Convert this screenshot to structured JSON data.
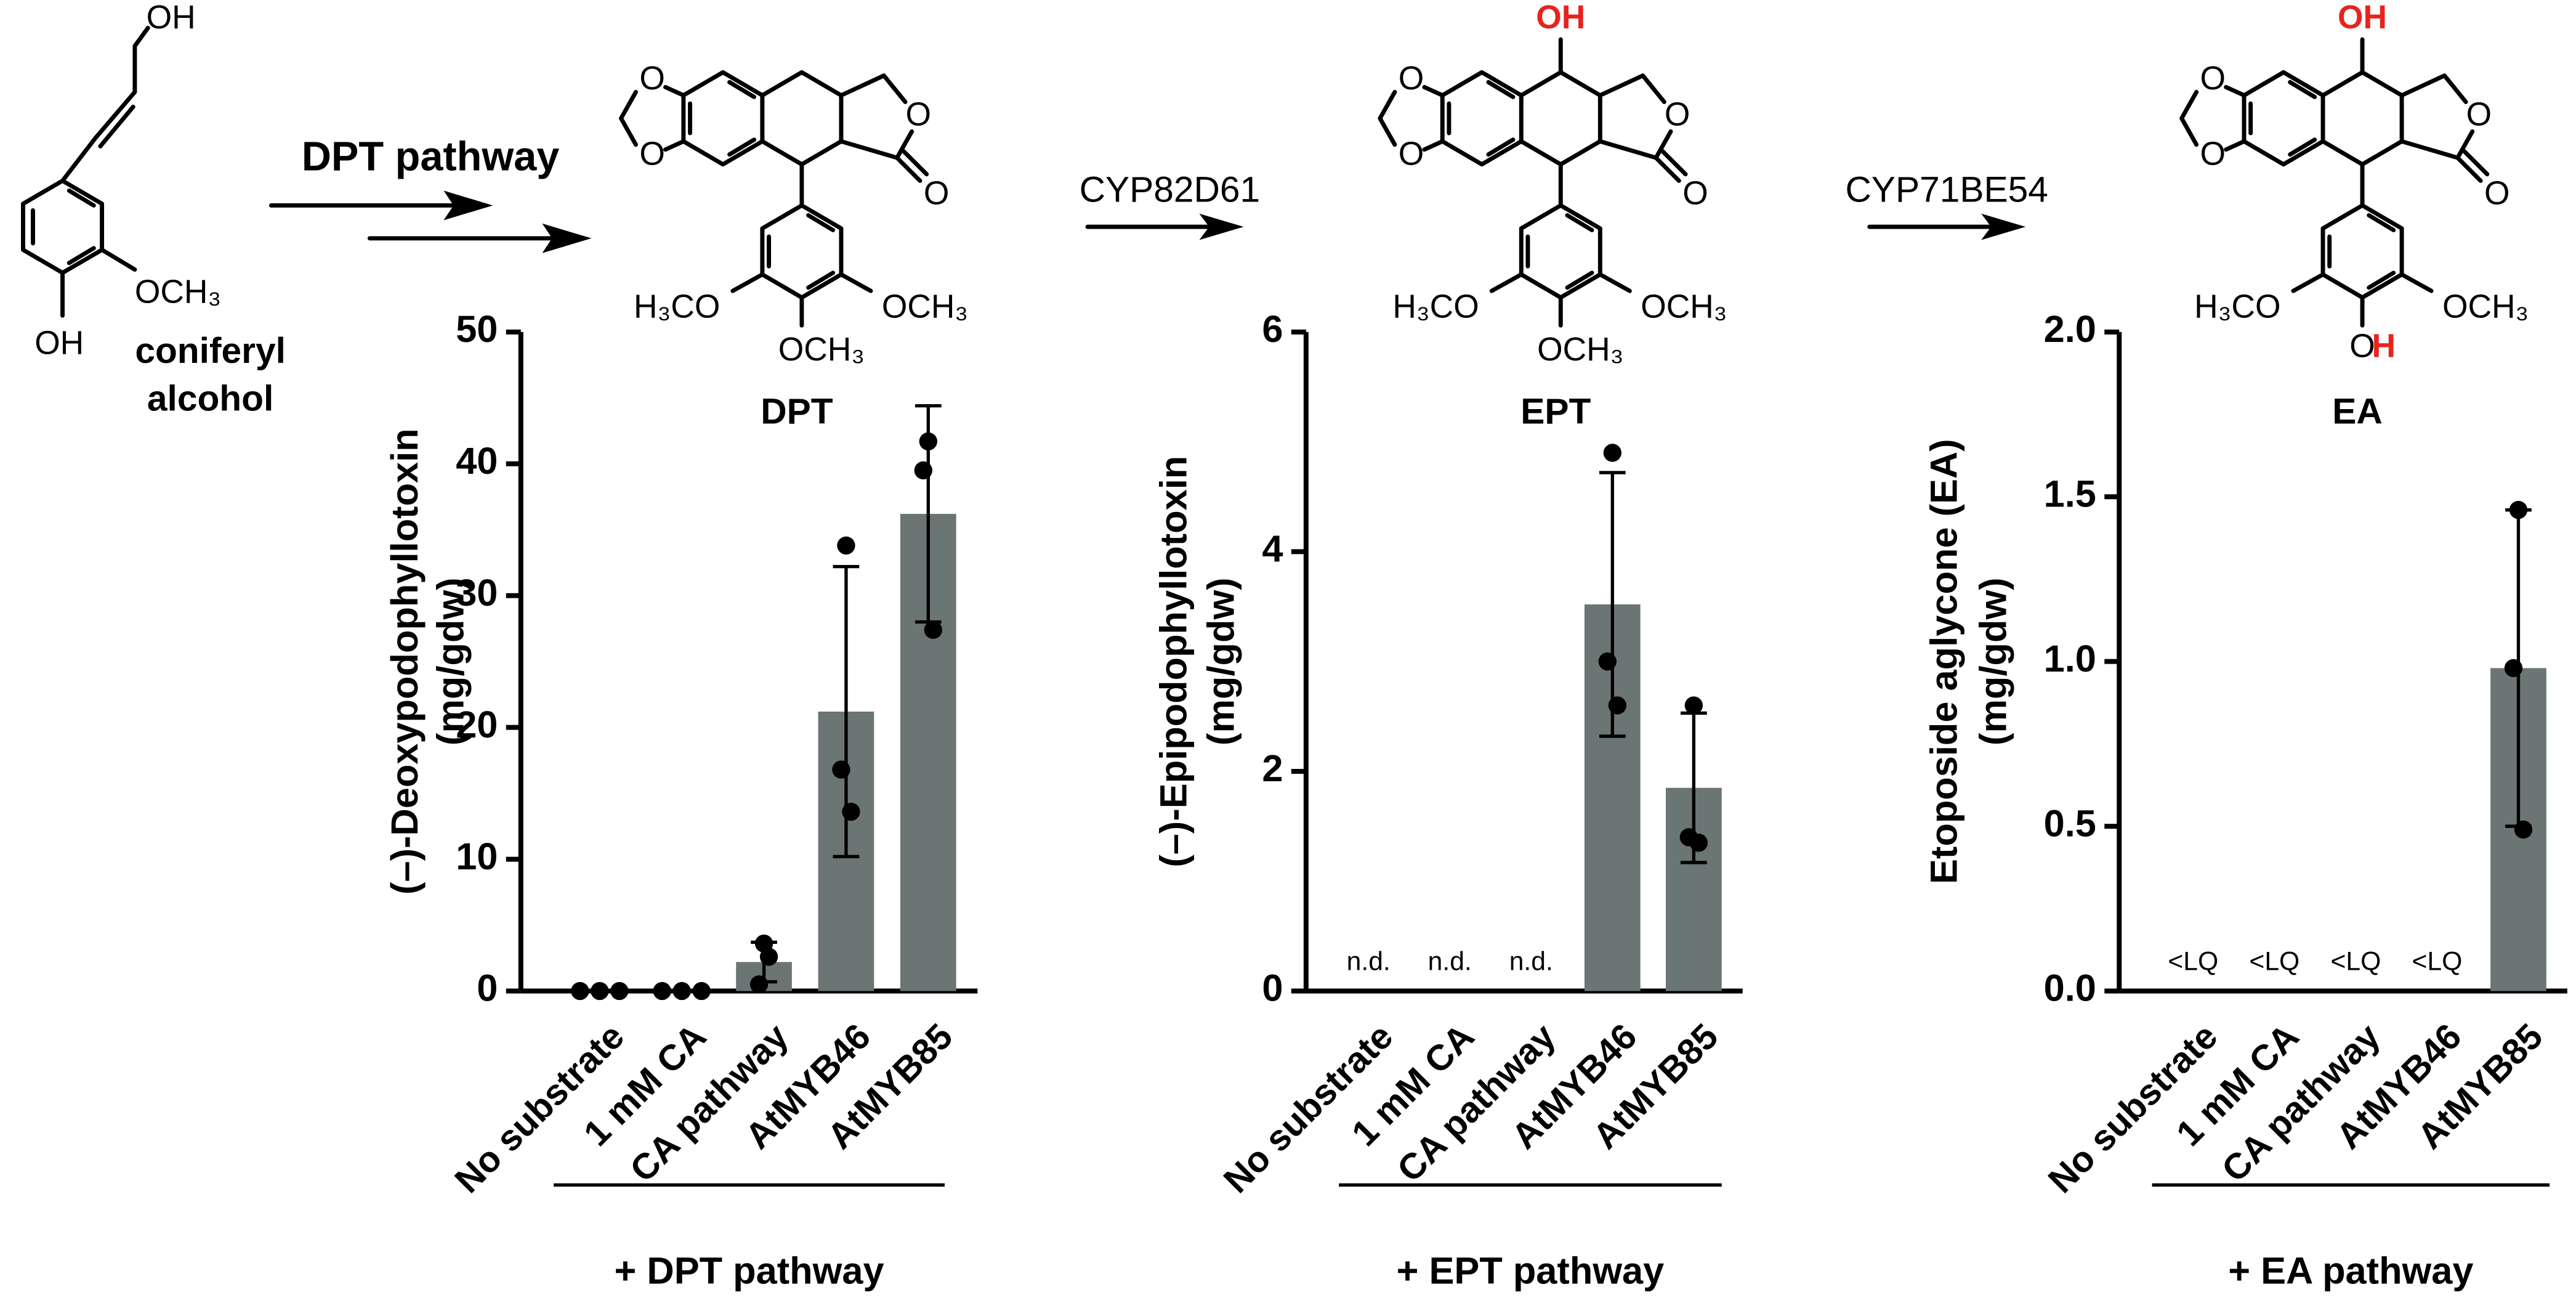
{
  "scheme": {
    "start": {
      "name": [
        "coniferyl",
        "alcohol"
      ],
      "labels": [
        "OH",
        "OCH₃",
        "OH"
      ]
    },
    "steps": [
      "DPT pathway",
      "CYP82D61",
      "CYP71BE54"
    ],
    "structures": [
      {
        "name": "DPT",
        "labels": [
          {
            "text": "O"
          },
          {
            "text": "O"
          },
          {
            "text": "O"
          },
          {
            "text": "O"
          },
          {
            "text": "H₃CO"
          },
          {
            "text": "OCH₃"
          },
          {
            "text": "OCH₃"
          }
        ]
      },
      {
        "name": "EPT",
        "labels": [
          {
            "text": "O"
          },
          {
            "text": "O"
          },
          {
            "text": "O"
          },
          {
            "text": "O"
          },
          {
            "text": "H₃CO"
          },
          {
            "text": "OCH₃"
          },
          {
            "text": "OCH₃"
          },
          {
            "text": "OH",
            "color": "#e8231e"
          }
        ]
      },
      {
        "name": "EA",
        "labels": [
          {
            "text": "O"
          },
          {
            "text": "O"
          },
          {
            "text": "O"
          },
          {
            "text": "O"
          },
          {
            "text": "H₃CO"
          },
          {
            "text": "OCH₃"
          },
          {
            "text": "O"
          },
          {
            "text": "OH",
            "color": "#e8231e"
          },
          {
            "text": "H",
            "color": "#e8231e"
          }
        ]
      }
    ]
  },
  "chart_data": [
    {
      "type": "bar",
      "y_label": "(–)-Deoxypodophyllotoxin",
      "y_unit": "(mg/gdw)",
      "categories": [
        "No substrate",
        "1 mM CA",
        "CA pathway",
        "AtMYB46",
        "AtMYB85"
      ],
      "values": [
        0,
        0,
        2.2,
        21.2,
        36.2
      ],
      "errors": [
        null,
        null,
        1.5,
        11,
        8.2
      ],
      "points": [
        [
          0,
          0,
          0
        ],
        [
          0,
          0,
          0
        ],
        [
          3.6,
          0.5,
          2.6
        ],
        [
          33.8,
          16.8,
          13.6
        ],
        [
          41.7,
          39.5,
          27.4
        ]
      ],
      "group_label": "+ DPT pathway",
      "color": "#6b7573",
      "point_color": "#000000",
      "ylim": [
        0,
        50
      ],
      "yticks": [
        0,
        10,
        20,
        30,
        40,
        50
      ]
    },
    {
      "type": "bar",
      "y_label": "(–)-Epipodophyllotoxin",
      "y_unit": "(mg/gdw)",
      "categories": [
        "No substrate",
        "1 mM CA",
        "CA pathway",
        "AtMYB46",
        "AtMYB85"
      ],
      "values": [
        null,
        null,
        null,
        3.52,
        1.85
      ],
      "value_labels": [
        "n.d.",
        "n.d.",
        "n.d.",
        null,
        null
      ],
      "errors": [
        null,
        null,
        null,
        1.2,
        0.68
      ],
      "points": [
        [],
        [],
        [],
        [
          4.9,
          3.0,
          2.6
        ],
        [
          2.6,
          1.4,
          1.35
        ]
      ],
      "group_label": "+ EPT pathway",
      "color": "#6b7573",
      "point_color": "#000000",
      "ylim": [
        0,
        6
      ],
      "yticks": [
        0,
        2,
        4,
        6
      ]
    },
    {
      "type": "bar",
      "y_label": "Etoposide aglycone (EA)",
      "y_unit": "(mg/gdw)",
      "categories": [
        "No substrate",
        "1 mM CA",
        "CA pathway",
        "AtMYB46",
        "AtMYB85"
      ],
      "values": [
        null,
        null,
        null,
        null,
        0.98
      ],
      "value_labels": [
        "<LQ",
        "<LQ",
        "<LQ",
        "<LQ",
        null
      ],
      "errors": [
        null,
        null,
        null,
        null,
        0.48
      ],
      "points": [
        [],
        [],
        [],
        [],
        [
          1.46,
          0.98,
          0.49
        ]
      ],
      "group_label": "+ EA pathway",
      "color": "#6b7573",
      "point_color": "#000000",
      "ylim": [
        0,
        2
      ],
      "yticks": [
        {
          "value": 0,
          "label": "0.0"
        },
        {
          "value": 0.5,
          "label": "0.5"
        },
        {
          "value": 1,
          "label": "1.0"
        },
        {
          "value": 1.5,
          "label": "1.5"
        },
        {
          "value": 2,
          "label": "2.0"
        }
      ]
    }
  ]
}
